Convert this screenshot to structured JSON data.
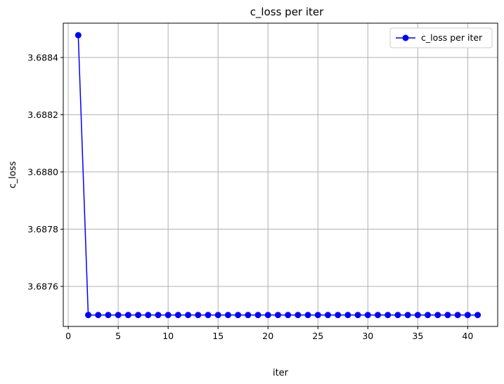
{
  "chart_data": {
    "type": "line",
    "title": "c_loss per iter",
    "xlabel": "iter",
    "ylabel": "c_loss",
    "xlim": [
      -0.5,
      43
    ],
    "ylim": [
      3.68746,
      3.68852
    ],
    "xticks": [
      0,
      5,
      10,
      15,
      20,
      25,
      30,
      35,
      40
    ],
    "xtick_labels": [
      "0",
      "5",
      "10",
      "15",
      "20",
      "25",
      "30",
      "35",
      "40"
    ],
    "yticks": [
      3.6876,
      3.6878,
      3.688,
      3.6882,
      3.6884
    ],
    "ytick_labels": [
      "3.6876",
      "3.6878",
      "3.6880",
      "3.6882",
      "3.6884"
    ],
    "grid": true,
    "legend_position": "top-right",
    "series": [
      {
        "name": "c_loss per iter",
        "color": "#0000ff",
        "marker": "circle",
        "x": [
          1,
          2,
          3,
          4,
          5,
          6,
          7,
          8,
          9,
          10,
          11,
          12,
          13,
          14,
          15,
          16,
          17,
          18,
          19,
          20,
          21,
          22,
          23,
          24,
          25,
          26,
          27,
          28,
          29,
          30,
          31,
          32,
          33,
          34,
          35,
          36,
          37,
          38,
          39,
          40,
          41
        ],
        "values": [
          3.688478,
          3.6875,
          3.6875,
          3.6875,
          3.6875,
          3.6875,
          3.6875,
          3.6875,
          3.6875,
          3.6875,
          3.6875,
          3.6875,
          3.6875,
          3.6875,
          3.6875,
          3.6875,
          3.6875,
          3.6875,
          3.6875,
          3.6875,
          3.6875,
          3.6875,
          3.6875,
          3.6875,
          3.6875,
          3.6875,
          3.6875,
          3.6875,
          3.6875,
          3.6875,
          3.6875,
          3.6875,
          3.6875,
          3.6875,
          3.6875,
          3.6875,
          3.6875,
          3.6875,
          3.6875,
          3.6875,
          3.6875
        ]
      }
    ]
  },
  "colors": {
    "grid": "#b0b0b0",
    "axes": "#000000",
    "legend_border": "#cccccc"
  }
}
